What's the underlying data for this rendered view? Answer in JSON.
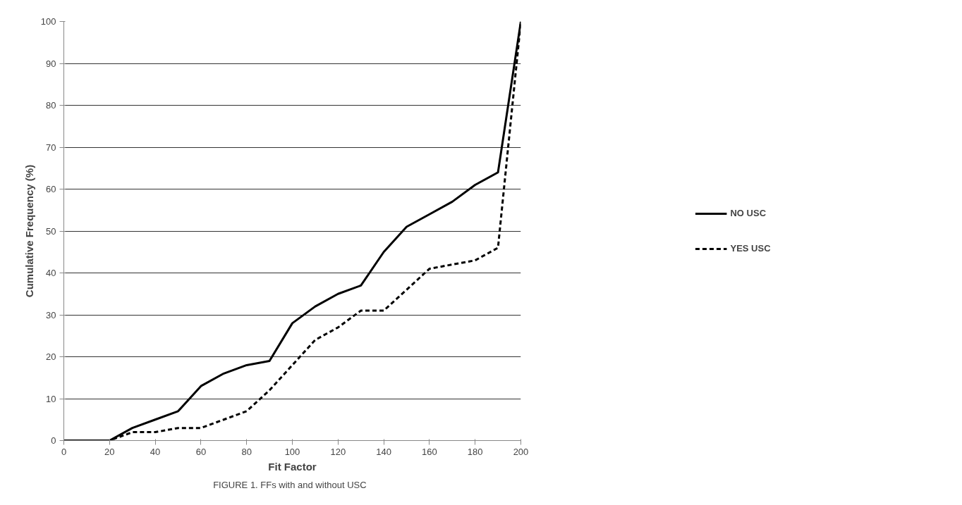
{
  "chart_data": {
    "type": "line",
    "xlabel": "Fit Factor",
    "ylabel": "Cumulative Frequency (%)",
    "x": [
      0,
      10,
      20,
      30,
      40,
      50,
      60,
      70,
      80,
      90,
      100,
      110,
      120,
      130,
      140,
      150,
      160,
      170,
      180,
      190,
      200
    ],
    "series": [
      {
        "name": "NO USC",
        "color": "#000000",
        "line_style": "solid",
        "values": [
          0,
          0,
          0,
          3,
          5,
          7,
          13,
          16,
          18,
          19,
          28,
          32,
          35,
          37,
          45,
          51,
          54,
          57,
          61,
          64,
          100
        ]
      },
      {
        "name": "YES USC",
        "color": "#000000",
        "line_style": "dashed",
        "values": [
          0,
          0,
          0,
          2,
          2,
          3,
          3,
          5,
          7,
          12,
          18,
          24,
          27,
          31,
          31,
          36,
          41,
          42,
          43,
          46,
          100
        ]
      }
    ],
    "xlim": [
      0,
      200
    ],
    "xticks": [
      0,
      20,
      40,
      60,
      80,
      100,
      120,
      140,
      160,
      180,
      200
    ],
    "ylim": [
      0,
      100
    ],
    "yticks": [
      0,
      10,
      20,
      30,
      40,
      50,
      60,
      70,
      80,
      90,
      100
    ],
    "grid": "y",
    "legend": "right",
    "marker": "none",
    "annotations": [
      "FIGURE 1.   FFs with and without USC"
    ]
  }
}
